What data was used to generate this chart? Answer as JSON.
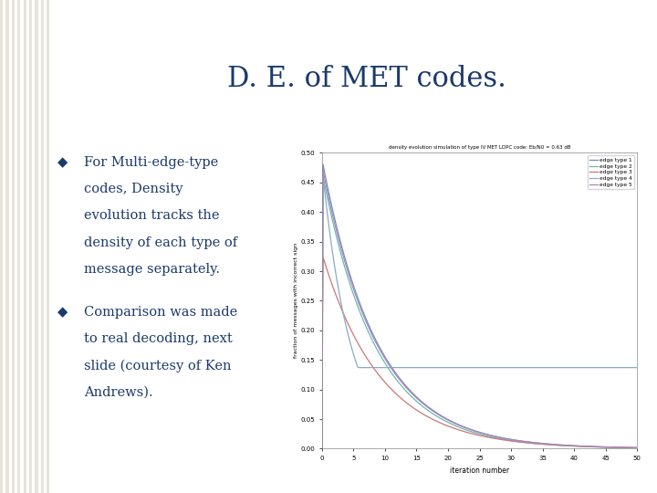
{
  "title": "D. E. of MET codes.",
  "title_color": "#1B3A6B",
  "title_fontsize": 22,
  "background_color": "#FFFFFF",
  "accent_color_top": "#1B3A6B",
  "accent_color_rect": "#C8BC8A",
  "stripe_color": "#E8E4D8",
  "bullet_points": [
    "For Multi-edge-type codes, Density evolution tracks the density of each type of message separately.",
    "Comparison was made to real decoding, next slide (courtesy of Ken Andrews)."
  ],
  "bullet_color": "#1B3A6B",
  "bullet_fontsize": 10.5,
  "chart_title": "density evolution simulation of type IV MET LDPC code: Eb/N0 = 0.63 dB",
  "xlabel": "iteration number",
  "ylabel": "fraction of messages with incorrect sign",
  "xlim": [
    0,
    50
  ],
  "ylim": [
    0,
    0.5
  ],
  "xticks": [
    0,
    5,
    10,
    15,
    20,
    25,
    30,
    35,
    40,
    45,
    50
  ],
  "yticks": [
    0,
    0.05,
    0.1,
    0.15,
    0.2,
    0.25,
    0.3,
    0.35,
    0.4,
    0.45,
    0.5
  ],
  "line_colors": [
    "#7788BB",
    "#66BBAA",
    "#CC7777",
    "#88AACC",
    "#AA88BB"
  ],
  "legend_labels": [
    "edge type 1",
    "edge type 2",
    "edge type 3",
    "edge type 4",
    "edge type 5"
  ]
}
